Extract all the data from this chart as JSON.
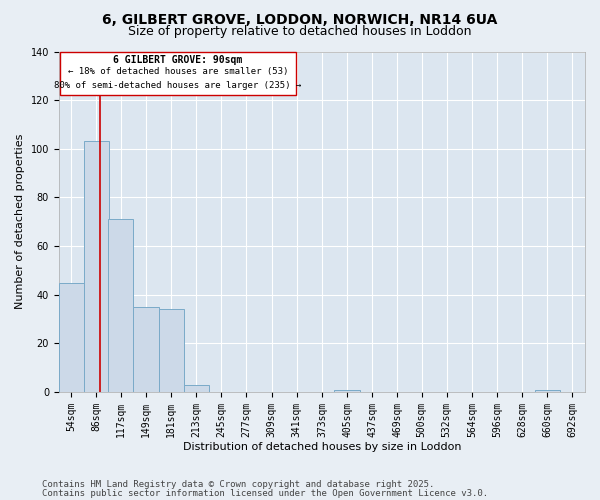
{
  "title1": "6, GILBERT GROVE, LODDON, NORWICH, NR14 6UA",
  "title2": "Size of property relative to detached houses in Loddon",
  "xlabel": "Distribution of detached houses by size in Loddon",
  "ylabel": "Number of detached properties",
  "categories": [
    "54sqm",
    "86sqm",
    "117sqm",
    "149sqm",
    "181sqm",
    "213sqm",
    "245sqm",
    "277sqm",
    "309sqm",
    "341sqm",
    "373sqm",
    "405sqm",
    "437sqm",
    "469sqm",
    "500sqm",
    "532sqm",
    "564sqm",
    "596sqm",
    "628sqm",
    "660sqm",
    "692sqm"
  ],
  "values": [
    45,
    103,
    71,
    35,
    34,
    3,
    0,
    0,
    0,
    0,
    0,
    1,
    0,
    0,
    0,
    0,
    0,
    0,
    0,
    1,
    0
  ],
  "bar_color": "#ccd9e8",
  "bar_edge_color": "#7aaac8",
  "ylim": [
    0,
    140
  ],
  "yticks": [
    0,
    20,
    40,
    60,
    80,
    100,
    120,
    140
  ],
  "red_line_x": 90,
  "annotation_title": "6 GILBERT GROVE: 90sqm",
  "annotation_line1": "← 18% of detached houses are smaller (53)",
  "annotation_line2": "80% of semi-detached houses are larger (235) →",
  "annotation_box_color": "#ffffff",
  "annotation_border_color": "#cc0000",
  "red_line_color": "#cc0000",
  "footer1": "Contains HM Land Registry data © Crown copyright and database right 2025.",
  "footer2": "Contains public sector information licensed under the Open Government Licence v3.0.",
  "background_color": "#e8eef4",
  "plot_bg_color": "#dce6f0",
  "grid_color": "#ffffff",
  "title_fontsize": 10,
  "subtitle_fontsize": 9,
  "xlabel_fontsize": 8,
  "ylabel_fontsize": 8,
  "tick_fontsize": 7,
  "footer_fontsize": 6.5,
  "annotation_fontsize_title": 7,
  "annotation_fontsize_body": 6.5
}
